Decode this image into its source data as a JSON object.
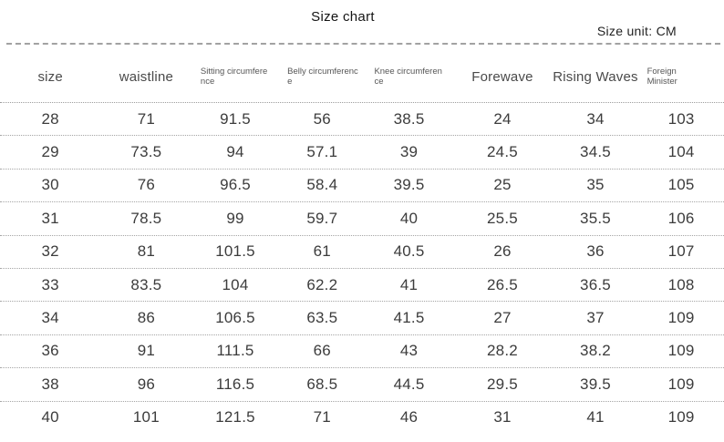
{
  "page": {
    "title": "Size chart",
    "unit_label": "Size unit: CM"
  },
  "table": {
    "columns": [
      {
        "id": "size",
        "label": "size",
        "lines": [
          "size"
        ],
        "small": false
      },
      {
        "id": "waistline",
        "label": "waistline",
        "lines": [
          "waistline"
        ],
        "small": false
      },
      {
        "id": "sitting-circumference",
        "label": "Sitting circumference",
        "lines": [
          "Sitting circumfere",
          "nce"
        ],
        "small": true
      },
      {
        "id": "belly-circumference",
        "label": "Belly circumference",
        "lines": [
          "Belly circumferenc",
          "e"
        ],
        "small": true
      },
      {
        "id": "knee-circumference",
        "label": "Knee circumference",
        "lines": [
          "Knee circumferen",
          "ce"
        ],
        "small": true
      },
      {
        "id": "forewave",
        "label": "Forewave",
        "lines": [
          "Forewave"
        ],
        "small": false
      },
      {
        "id": "rising-waves",
        "label": "Rising Waves",
        "lines": [
          "Rising Waves"
        ],
        "small": false
      },
      {
        "id": "foreign-minister",
        "label": "Foreign Minister",
        "lines": [
          "Foreign",
          "Minister"
        ],
        "small": true
      }
    ],
    "rows": [
      [
        "28",
        "71",
        "91.5",
        "56",
        "38.5",
        "24",
        "34",
        "103"
      ],
      [
        "29",
        "73.5",
        "94",
        "57.1",
        "39",
        "24.5",
        "34.5",
        "104"
      ],
      [
        "30",
        "76",
        "96.5",
        "58.4",
        "39.5",
        "25",
        "35",
        "105"
      ],
      [
        "31",
        "78.5",
        "99",
        "59.7",
        "40",
        "25.5",
        "35.5",
        "106"
      ],
      [
        "32",
        "81",
        "101.5",
        "61",
        "40.5",
        "26",
        "36",
        "107"
      ],
      [
        "33",
        "83.5",
        "104",
        "62.2",
        "41",
        "26.5",
        "36.5",
        "108"
      ],
      [
        "34",
        "86",
        "106.5",
        "63.5",
        "41.5",
        "27",
        "37",
        "109"
      ],
      [
        "36",
        "91",
        "111.5",
        "66",
        "43",
        "28.2",
        "38.2",
        "109"
      ],
      [
        "38",
        "96",
        "116.5",
        "68.5",
        "44.5",
        "29.5",
        "39.5",
        "109"
      ],
      [
        "40",
        "101",
        "121.5",
        "71",
        "46",
        "31",
        "41",
        "109"
      ]
    ]
  },
  "chart_data": {
    "type": "table",
    "title": "Size chart",
    "subtitle": "Size unit: CM",
    "columns": [
      "size",
      "waistline",
      "Sitting circumference",
      "Belly circumference",
      "Knee circumference",
      "Forewave",
      "Rising Waves",
      "Foreign Minister"
    ],
    "rows": [
      [
        28,
        71,
        91.5,
        56,
        38.5,
        24,
        34,
        103
      ],
      [
        29,
        73.5,
        94,
        57.1,
        39,
        24.5,
        34.5,
        104
      ],
      [
        30,
        76,
        96.5,
        58.4,
        39.5,
        25,
        35,
        105
      ],
      [
        31,
        78.5,
        99,
        59.7,
        40,
        25.5,
        35.5,
        106
      ],
      [
        32,
        81,
        101.5,
        61,
        40.5,
        26,
        36,
        107
      ],
      [
        33,
        83.5,
        104,
        62.2,
        41,
        26.5,
        36.5,
        108
      ],
      [
        34,
        86,
        106.5,
        63.5,
        41.5,
        27,
        37,
        109
      ],
      [
        36,
        91,
        111.5,
        66,
        43,
        28.2,
        38.2,
        109
      ],
      [
        38,
        96,
        116.5,
        68.5,
        44.5,
        29.5,
        39.5,
        109
      ],
      [
        40,
        101,
        121.5,
        71,
        46,
        31,
        41,
        109
      ]
    ],
    "unit": "CM",
    "grid": "dotted horizontal rules between rows",
    "legend_position": "none"
  },
  "colors": {
    "background": "#ffffff",
    "body_text": "#3c3c3c",
    "header_text": "#4a4a4a",
    "divider": "#a0a0a0"
  }
}
